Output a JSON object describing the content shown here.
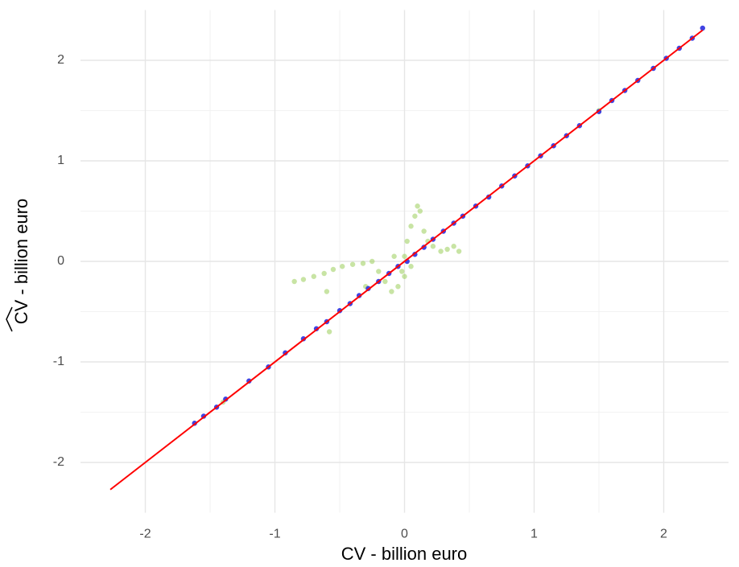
{
  "chart_data": {
    "type": "scatter",
    "x_label": "CV - billion euro",
    "y_label": "CV - billion euro",
    "xlim": [
      -2.5,
      2.5
    ],
    "ylim": [
      -2.5,
      2.5
    ],
    "xticks": [
      -2,
      -1,
      0,
      1,
      2
    ],
    "yticks": [
      -2,
      -1,
      0,
      1,
      2
    ],
    "xminor": [
      -1.5,
      -0.5,
      0.5,
      1.5
    ],
    "yminor": [
      -1.5,
      -0.5,
      0.5,
      1.5
    ],
    "grid": true,
    "series": [
      {
        "color": "#9acd5a",
        "opacity": 0.55,
        "x": [
          -0.85,
          -0.78,
          -0.7,
          -0.62,
          -0.55,
          -0.48,
          -0.4,
          -0.32,
          -0.25,
          -0.2,
          -0.15,
          -0.1,
          -0.05,
          -0.02,
          0.0,
          0.02,
          0.05,
          0.08,
          0.1,
          0.12,
          0.15,
          0.18,
          0.22,
          0.28,
          0.33,
          0.38,
          0.42,
          -0.6,
          -0.3,
          -1.4,
          1.5,
          -0.58,
          0.0,
          -0.08,
          0.05
        ],
        "values": [
          -0.2,
          -0.18,
          -0.15,
          -0.12,
          -0.08,
          -0.05,
          -0.03,
          -0.02,
          0.0,
          -0.1,
          -0.2,
          -0.3,
          -0.25,
          -0.1,
          0.05,
          0.2,
          0.35,
          0.45,
          0.55,
          0.5,
          0.3,
          0.2,
          0.15,
          0.1,
          0.12,
          0.15,
          0.1,
          -0.3,
          -0.25,
          -1.4,
          1.5,
          -0.7,
          -0.15,
          0.05,
          -0.05
        ]
      },
      {
        "color": "#2b2fe0",
        "opacity": 0.9,
        "x": [
          -1.62,
          -1.55,
          -1.45,
          -1.38,
          -1.2,
          -1.05,
          -0.92,
          -0.78,
          -0.68,
          -0.6,
          -0.5,
          -0.42,
          -0.35,
          -0.28,
          -0.2,
          -0.12,
          -0.05,
          0.02,
          0.08,
          0.15,
          0.22,
          0.3,
          0.38,
          0.45,
          0.55,
          0.65,
          0.75,
          0.85,
          0.95,
          1.05,
          1.15,
          1.25,
          1.35,
          1.5,
          1.6,
          1.7,
          1.8,
          1.92,
          2.02,
          2.12,
          2.22,
          2.3
        ],
        "values": [
          -1.61,
          -1.54,
          -1.45,
          -1.37,
          -1.19,
          -1.05,
          -0.91,
          -0.77,
          -0.67,
          -0.6,
          -0.49,
          -0.42,
          -0.34,
          -0.27,
          -0.2,
          -0.12,
          -0.05,
          0.0,
          0.07,
          0.14,
          0.22,
          0.3,
          0.38,
          0.45,
          0.55,
          0.64,
          0.75,
          0.85,
          0.95,
          1.05,
          1.15,
          1.25,
          1.35,
          1.49,
          1.6,
          1.7,
          1.8,
          1.92,
          2.02,
          2.12,
          2.22,
          2.32
        ]
      }
    ],
    "lines": [
      {
        "color": "#ff0000",
        "x": [
          -2.27,
          2.3
        ],
        "values": [
          -2.27,
          2.3
        ]
      }
    ]
  }
}
